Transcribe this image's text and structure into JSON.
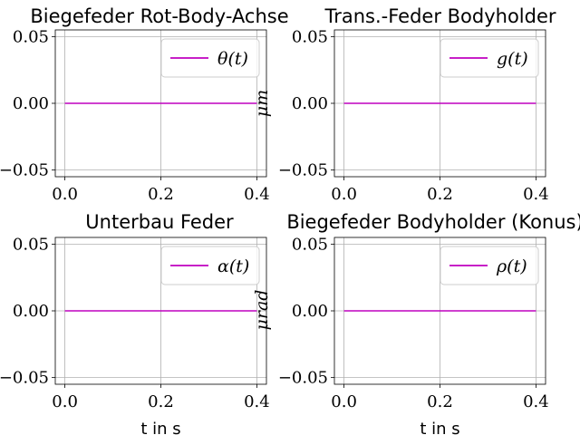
{
  "chart_data": [
    {
      "type": "line",
      "title": "Biegefeder Rot-Body-Achse",
      "xlabel": "",
      "ylabel": "",
      "xlim": [
        -0.02,
        0.42
      ],
      "ylim": [
        -0.055,
        0.055
      ],
      "xticks": [
        "0.0",
        "0.2",
        "0.4"
      ],
      "xtick_values": [
        0.0,
        0.2,
        0.4
      ],
      "yticks": [
        "0.05",
        "0.00",
        "−0.05"
      ],
      "ytick_values": [
        0.05,
        0.0,
        -0.05
      ],
      "grid": true,
      "legend_position": "top-right",
      "series": [
        {
          "name": "θ(t)",
          "color": "#bf00bf",
          "x": [
            0.0,
            0.4
          ],
          "values": [
            0.0,
            0.0
          ]
        }
      ]
    },
    {
      "type": "line",
      "title": "Trans.-Feder Bodyholder",
      "xlabel": "",
      "ylabel": "μm",
      "xlim": [
        -0.02,
        0.42
      ],
      "ylim": [
        -0.055,
        0.055
      ],
      "xticks": [
        "0.0",
        "0.2",
        "0.4"
      ],
      "xtick_values": [
        0.0,
        0.2,
        0.4
      ],
      "yticks": [
        "0.05",
        "0.00",
        "−0.05"
      ],
      "ytick_values": [
        0.05,
        0.0,
        -0.05
      ],
      "grid": true,
      "legend_position": "top-right",
      "series": [
        {
          "name": "g(t)",
          "color": "#bf00bf",
          "x": [
            0.0,
            0.4
          ],
          "values": [
            0.0,
            0.0
          ]
        }
      ]
    },
    {
      "type": "line",
      "title": "Unterbau Feder",
      "xlabel": "t in s",
      "ylabel": "",
      "xlim": [
        -0.02,
        0.42
      ],
      "ylim": [
        -0.055,
        0.055
      ],
      "xticks": [
        "0.0",
        "0.2",
        "0.4"
      ],
      "xtick_values": [
        0.0,
        0.2,
        0.4
      ],
      "yticks": [
        "0.05",
        "0.00",
        "−0.05"
      ],
      "ytick_values": [
        0.05,
        0.0,
        -0.05
      ],
      "grid": true,
      "legend_position": "top-right",
      "series": [
        {
          "name": "α(t)",
          "color": "#bf00bf",
          "x": [
            0.0,
            0.4
          ],
          "values": [
            0.0,
            0.0
          ]
        }
      ]
    },
    {
      "type": "line",
      "title": "Biegefeder Bodyholder (Konus)",
      "xlabel": "t in s",
      "ylabel": "μrad",
      "xlim": [
        -0.02,
        0.42
      ],
      "ylim": [
        -0.055,
        0.055
      ],
      "xticks": [
        "0.0",
        "0.2",
        "0.4"
      ],
      "xtick_values": [
        0.0,
        0.2,
        0.4
      ],
      "yticks": [
        "0.05",
        "0.00",
        "−0.05"
      ],
      "ytick_values": [
        0.05,
        0.0,
        -0.05
      ],
      "grid": true,
      "legend_position": "top-right",
      "series": [
        {
          "name": "ρ(t)",
          "color": "#bf00bf",
          "x": [
            0.0,
            0.4
          ],
          "values": [
            0.0,
            0.0
          ]
        }
      ]
    }
  ]
}
